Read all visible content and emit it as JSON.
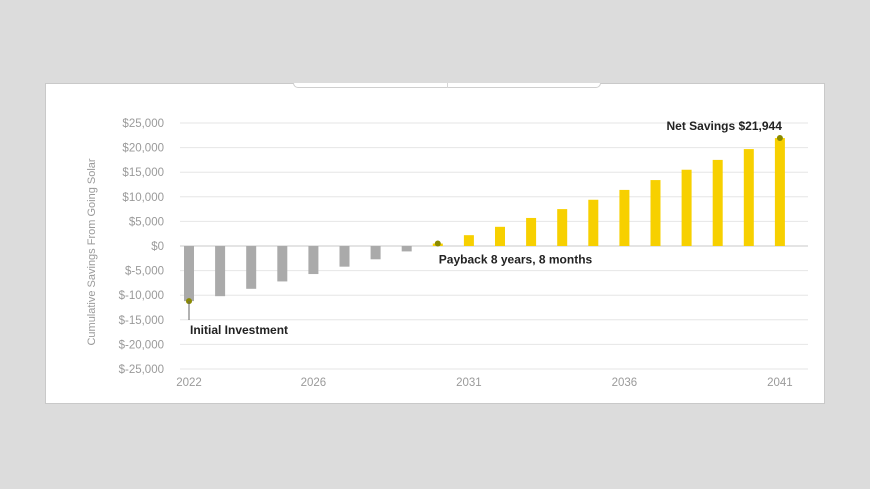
{
  "chart_data": {
    "type": "bar",
    "title": "",
    "ylabel": "Cumulative Savings From Going Solar",
    "xlabel": "",
    "ylim": [
      -25000,
      25000
    ],
    "yticks": [
      25000,
      20000,
      15000,
      10000,
      5000,
      0,
      -5000,
      -10000,
      -15000,
      -20000,
      -25000
    ],
    "ytick_labels": [
      "$25,000",
      "$20,000",
      "$15,000",
      "$10,000",
      "$5,000",
      "$0",
      "$-5,000",
      "$-10,000",
      "$-15,000",
      "$-20,000",
      "$-25,000"
    ],
    "xticks": [
      2022,
      2026,
      2031,
      2036,
      2041
    ],
    "grid": true,
    "negative_color": "#aaaaaa",
    "positive_color": "#f7d000",
    "marker_color": "#8a8a00",
    "x": [
      2022,
      2023,
      2024,
      2025,
      2026,
      2027,
      2028,
      2029,
      2030,
      2031,
      2032,
      2033,
      2034,
      2035,
      2036,
      2037,
      2038,
      2039,
      2040,
      2041
    ],
    "values": [
      -11200,
      -10200,
      -8700,
      -7200,
      -5700,
      -4200,
      -2700,
      -1100,
      500,
      2200,
      3900,
      5700,
      7500,
      9400,
      11400,
      13400,
      15500,
      17500,
      19700,
      21944
    ],
    "annotations": [
      {
        "index": 0,
        "text": "Initial Investment"
      },
      {
        "index": 8,
        "text": "Payback 8 years, 8 months"
      },
      {
        "index": 19,
        "text": "Net Savings $21,944"
      }
    ]
  }
}
